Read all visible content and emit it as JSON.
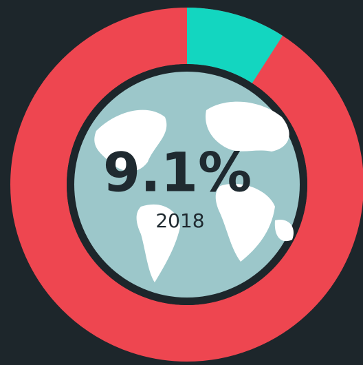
{
  "chart_data": {
    "type": "donut",
    "values": [
      9.1
    ],
    "value_labels": [
      "9.1%"
    ],
    "color": "#13d6c0",
    "subtitle": "2018",
    "ylim": [
      0,
      100
    ]
  }
}
